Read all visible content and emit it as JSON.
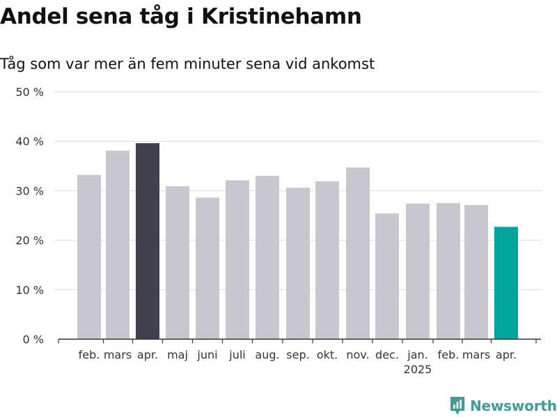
{
  "title": "Andel sena tåg i Kristinehamn",
  "subtitle": "Tåg som var mer än fem minuter sena vid ankomst",
  "brand": {
    "name": "Newsworthy",
    "icon": "newsworthy-logo-icon",
    "color": "#3f9d96"
  },
  "chart_data": {
    "type": "bar",
    "categories": [
      "feb.",
      "mars",
      "apr.",
      "maj",
      "juni",
      "juli",
      "aug.",
      "sep.",
      "okt.",
      "nov.",
      "dec.",
      "jan.",
      "feb.",
      "mars",
      "apr."
    ],
    "values": [
      33.2,
      38.1,
      39.6,
      30.9,
      28.6,
      32.1,
      33.0,
      30.6,
      31.9,
      34.7,
      25.4,
      27.4,
      27.5,
      27.1,
      22.7
    ],
    "year_labels": [
      {
        "index": 11,
        "label": "2025"
      }
    ],
    "y_ticks": [
      0,
      10,
      20,
      30,
      40,
      50
    ],
    "y_tick_labels": [
      "0 %",
      "10 %",
      "20 %",
      "30 %",
      "40 %",
      "50 %"
    ],
    "ylim": [
      0,
      50
    ],
    "grid": true,
    "colors": {
      "default": "#c8c7d0",
      "highlight_dark": "#40404e",
      "highlight_latest": "#00a69b"
    },
    "bar_colors": [
      "default",
      "default",
      "highlight_dark",
      "default",
      "default",
      "default",
      "default",
      "default",
      "default",
      "default",
      "default",
      "default",
      "default",
      "default",
      "highlight_latest"
    ]
  }
}
